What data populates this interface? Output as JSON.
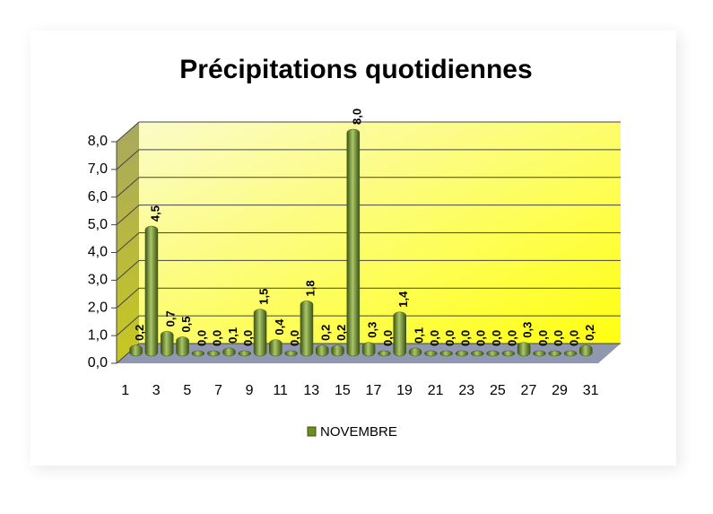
{
  "chart_data": {
    "type": "bar",
    "title": "Précipitations quotidiennes",
    "categories": [
      "1",
      null,
      "3",
      null,
      "5",
      null,
      "7",
      null,
      "9",
      null,
      "11",
      null,
      "13",
      null,
      "15",
      null,
      "17",
      null,
      "19",
      null,
      "21",
      null,
      "23",
      null,
      "25",
      null,
      "27",
      null,
      "29",
      null,
      "31"
    ],
    "series": [
      {
        "name": "NOVEMBRE",
        "color": "#6b8e23",
        "values": [
          0.2,
          4.5,
          0.7,
          0.5,
          0.0,
          0.0,
          0.1,
          0.0,
          1.5,
          0.4,
          0.0,
          1.8,
          0.2,
          0.2,
          8.0,
          0.3,
          0.0,
          1.4,
          0.1,
          0.0,
          0.0,
          0.0,
          0.0,
          0.0,
          0.0,
          0.3,
          0.0,
          0.0,
          0.0,
          0.2,
          null
        ],
        "value_labels": [
          "0,2",
          "4,5",
          "0,7",
          "0,5",
          "0,0",
          "0,0",
          "0,1",
          "0,0",
          "1,5",
          "0,4",
          "0,0",
          "1,8",
          "0,2",
          "0,2",
          "8,0",
          "0,3",
          "0,0",
          "1,4",
          "0,1",
          "0,0",
          "0,0",
          "0,0",
          "0,0",
          "0,0",
          "0,0",
          "0,3",
          "0,0",
          "0,0",
          "0,0",
          "0,2",
          null
        ]
      }
    ],
    "ylim": [
      0,
      8
    ],
    "yticks": [
      {
        "value": 0,
        "label": "0,0"
      },
      {
        "value": 1,
        "label": "1,0"
      },
      {
        "value": 2,
        "label": "2,0"
      },
      {
        "value": 3,
        "label": "3,0"
      },
      {
        "value": 4,
        "label": "4,0"
      },
      {
        "value": 5,
        "label": "5,0"
      },
      {
        "value": 6,
        "label": "6,0"
      },
      {
        "value": 7,
        "label": "7,0"
      },
      {
        "value": 8,
        "label": "8,0"
      }
    ],
    "grid": true,
    "legend": "bottom"
  }
}
